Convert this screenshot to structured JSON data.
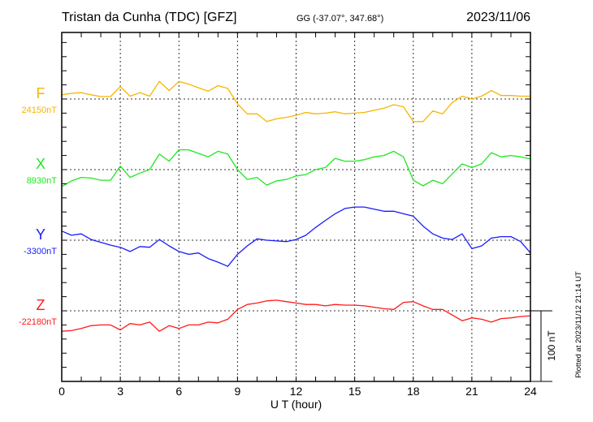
{
  "header": {
    "station": "Tristan da Cunha (TDC)  [GFZ]",
    "coords": "GG (-37.07°, 347.68°)",
    "date": "2023/11/06"
  },
  "footer": {
    "plotted": "Plotted at 2023/11/12 21:14 UT",
    "scale_label": "100 nT"
  },
  "chart_data": {
    "type": "line",
    "xlabel": "U T (hour)",
    "xlim": [
      0,
      24
    ],
    "x_ticks": [
      "0",
      "3",
      "6",
      "9",
      "12",
      "15",
      "18",
      "21",
      "24"
    ],
    "grid": "dotted vertical lines every 3 h, dotted baseline per component",
    "scale_bar_nT": 100,
    "x": [
      0,
      0.5,
      1,
      1.5,
      2,
      2.5,
      3,
      3.5,
      4,
      4.5,
      5,
      5.5,
      6,
      6.5,
      7,
      7.5,
      8,
      8.5,
      9,
      9.5,
      10,
      10.5,
      11,
      11.5,
      12,
      12.5,
      13,
      13.5,
      14,
      14.5,
      15,
      15.5,
      16,
      16.5,
      17,
      17.5,
      18,
      18.5,
      19,
      19.5,
      20,
      20.5,
      21,
      21.5,
      22,
      22.5,
      23,
      23.5,
      24
    ],
    "series": [
      {
        "name": "F",
        "baseline_label": "24150nT",
        "color": "#f7b500",
        "values": [
          6,
          8,
          9,
          6,
          3.5,
          3.5,
          17.6,
          4,
          9,
          4,
          25,
          12,
          25,
          21,
          16,
          11,
          19,
          15,
          -7,
          -21,
          -21,
          -32,
          -28,
          -26,
          -23,
          -19,
          -21,
          -20,
          -18,
          -21,
          -20,
          -19,
          -16,
          -13,
          -8,
          -11,
          -32,
          -32,
          -17,
          -21,
          -5,
          4,
          0,
          4,
          12,
          5,
          5,
          4,
          4
        ]
      },
      {
        "name": "X",
        "baseline_label": "8930nT",
        "color": "#22e622",
        "values": [
          -24,
          -16,
          -11,
          -12,
          -15,
          -15,
          5,
          -11,
          -5,
          0,
          22,
          12,
          28,
          28,
          23,
          18,
          26,
          22,
          0,
          -14,
          -11,
          -22,
          -16,
          -14,
          -9,
          -7,
          0,
          3,
          16,
          12,
          12,
          14,
          18,
          20,
          26,
          18,
          -15,
          -23,
          -15,
          -20,
          -6,
          8,
          3,
          8,
          24,
          18,
          20,
          18,
          15
        ]
      },
      {
        "name": "Y",
        "baseline_label": "-3300nT",
        "color": "#1a1aff",
        "values": [
          13,
          7,
          9,
          1,
          -3,
          -7,
          -10,
          -16,
          -9,
          -10,
          1,
          -8,
          -16,
          -20,
          -18,
          -26,
          -31,
          -37,
          -20,
          -8,
          2,
          0,
          -1,
          -2,
          1,
          7,
          18,
          28,
          37.5,
          45,
          47,
          47,
          44,
          41,
          41,
          37.5,
          34,
          20,
          9,
          3,
          1,
          9,
          -12,
          -8,
          3,
          5,
          5,
          -2,
          -18
        ]
      },
      {
        "name": "Z",
        "baseline_label": "-22180nT",
        "color": "#ff1a1a",
        "values": [
          -29,
          -28,
          -25,
          -21,
          -20,
          -20,
          -27,
          -18,
          -20,
          -16,
          -29,
          -21,
          -25,
          -20,
          -20,
          -16,
          -17,
          -12,
          2,
          9,
          11,
          14,
          15,
          13,
          11,
          9,
          9,
          7,
          9,
          8,
          8,
          7,
          5,
          3,
          2,
          12,
          13,
          7,
          2,
          2,
          -6,
          -14,
          -10,
          -12,
          -16,
          -11,
          -10,
          -8,
          -7
        ]
      }
    ]
  }
}
